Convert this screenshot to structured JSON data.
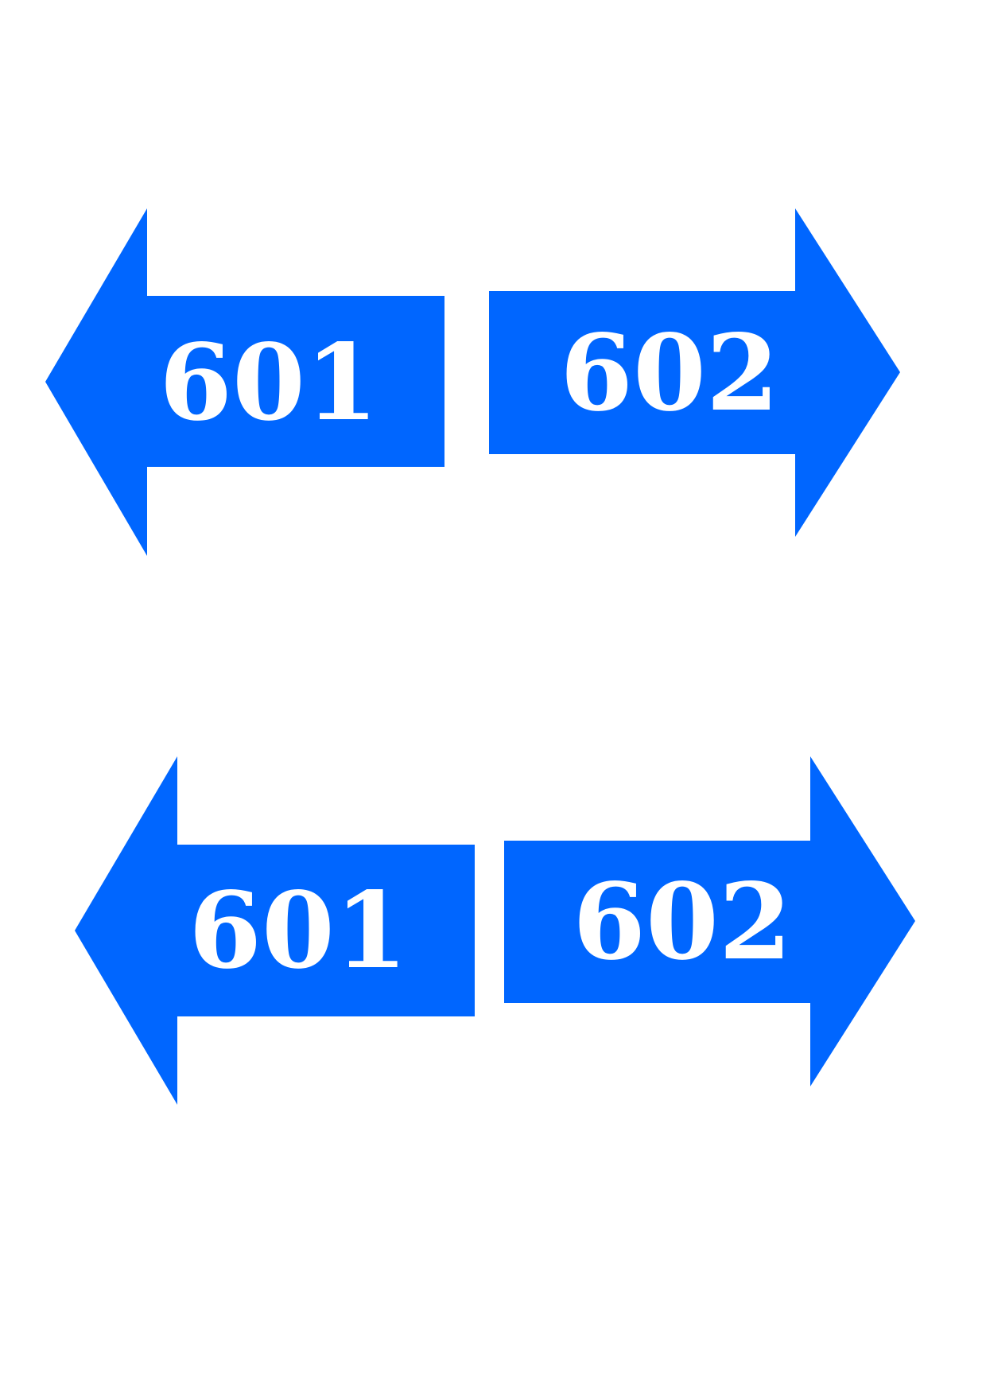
{
  "colors": {
    "arrow_fill": "#0066FF",
    "label_text": "#FFFFFF",
    "background": "#FFFFFF"
  },
  "rows": [
    {
      "left_arrow": {
        "direction": "left",
        "label": "601",
        "icon": "left-arrow-icon"
      },
      "right_arrow": {
        "direction": "right",
        "label": "602",
        "icon": "right-arrow-icon"
      }
    },
    {
      "left_arrow": {
        "direction": "left",
        "label": "601",
        "icon": "left-arrow-icon"
      },
      "right_arrow": {
        "direction": "right",
        "label": "602",
        "icon": "right-arrow-icon"
      }
    }
  ]
}
